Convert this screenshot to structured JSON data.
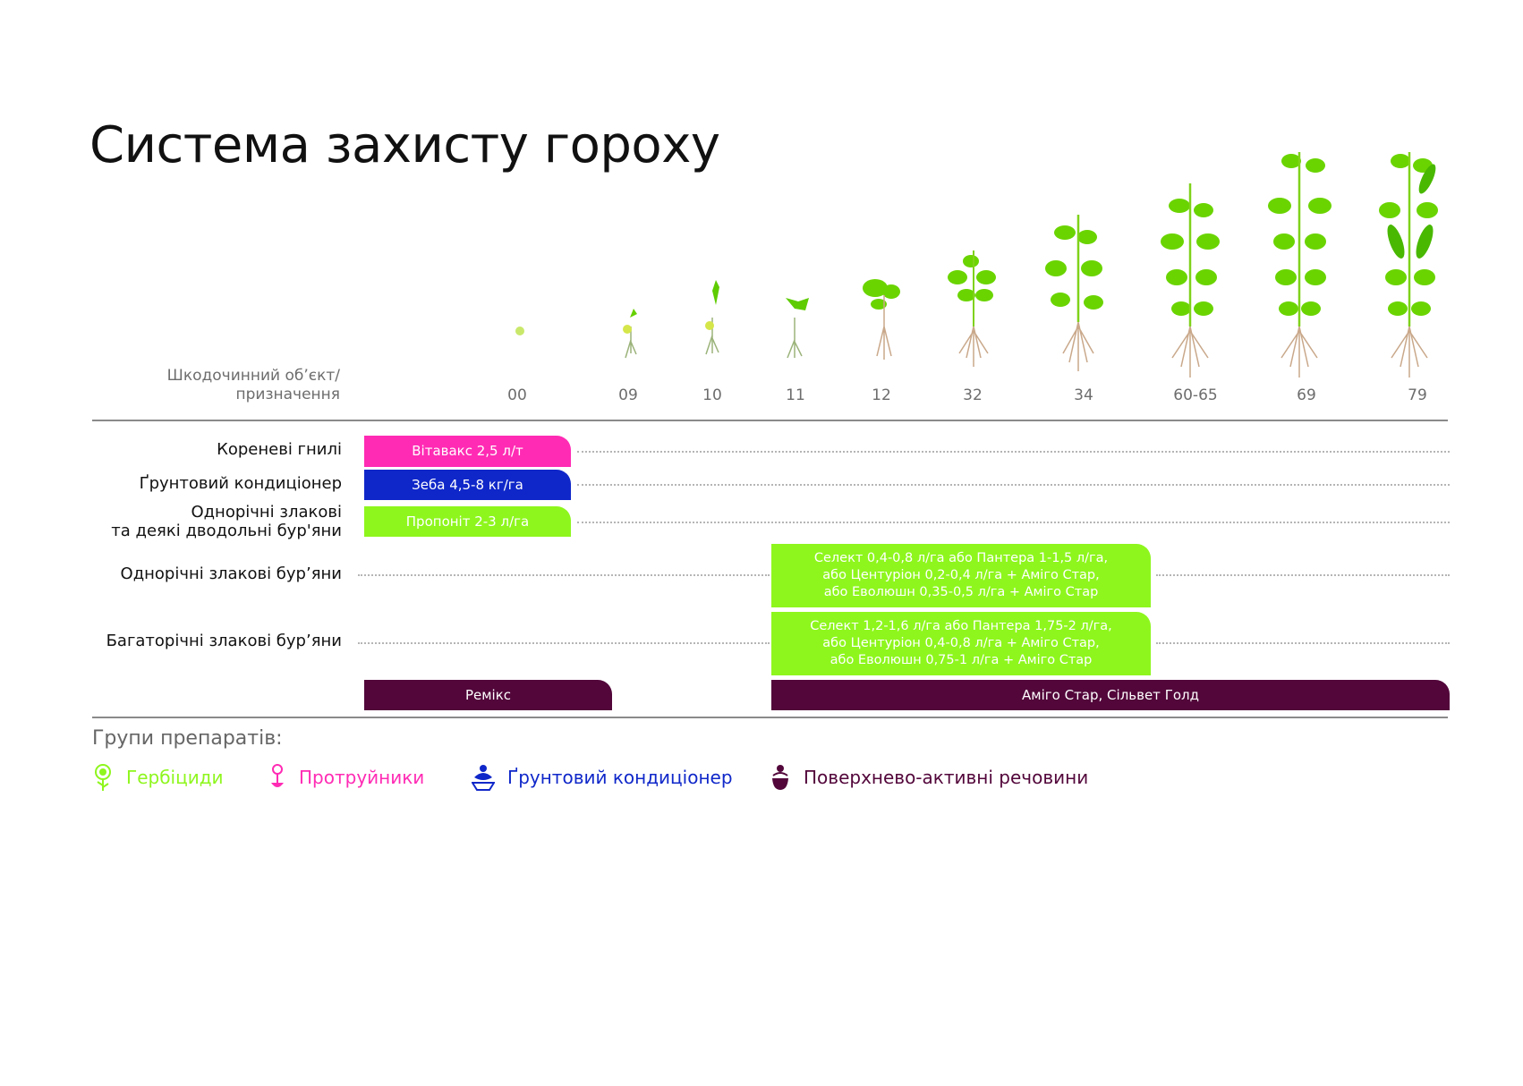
{
  "title": "Система захисту гороху",
  "column_header": {
    "line1": "Шкодочинний об’єкт/",
    "line2": "призначення"
  },
  "stages": [
    "00",
    "09",
    "10",
    "11",
    "12",
    "32",
    "34",
    "60-65",
    "69",
    "79"
  ],
  "rows": [
    {
      "label": "Кореневі  гнилі",
      "bar": "Вітавакс 2,5 л/т"
    },
    {
      "label": "Ґрунтовий кондиціонер",
      "bar": "Зеба 4,5-8 кг/га"
    },
    {
      "label_line1": "Однорічні злакові",
      "label_line2": "та деякі дводольні бур'яни",
      "bar": "Пропоніт 2-3 л/га"
    },
    {
      "label": "Однорічні злакові бур’яни",
      "bar_line1": "Селект 0,4-0,8 л/га або Пантера 1-1,5 л/га,",
      "bar_line2": "або Центуріон 0,2-0,4 л/га + Аміго Стар,",
      "bar_line3": "або Еволюшн 0,35-0,5 л/га + Аміго Стар"
    },
    {
      "label": "Багаторічні злакові бур’яни",
      "bar_line1": "Селект 1,2-1,6 л/га або Пантера 1,75-2 л/га,",
      "bar_line2": "або Центуріон 0,4-0,8 л/га + Аміго Стар,",
      "bar_line3": "або Еволюшн 0,75-1 л/га + Аміго Стар"
    }
  ],
  "surfactant_bars": [
    "Ремікс",
    "Аміго Стар, Сільвет Голд"
  ],
  "legend": {
    "title": "Групи препаратів:",
    "items": [
      {
        "label": "Гербіциди",
        "color": "#8ef61d",
        "icon": "sunflower-icon"
      },
      {
        "label": "Протруйники",
        "color": "#ff2bb4",
        "icon": "rose-icon"
      },
      {
        "label": "Ґрунтовий кондиціонер",
        "color": "#0f27c9",
        "icon": "ornament-icon"
      },
      {
        "label": "Поверхнево-активні речовини",
        "color": "#52063a",
        "icon": "pot-icon"
      }
    ]
  },
  "colors": {
    "herbicide": "#8ef61d",
    "protectant": "#ff2bb4",
    "soil": "#0f27c9",
    "surfactant": "#52063a"
  }
}
